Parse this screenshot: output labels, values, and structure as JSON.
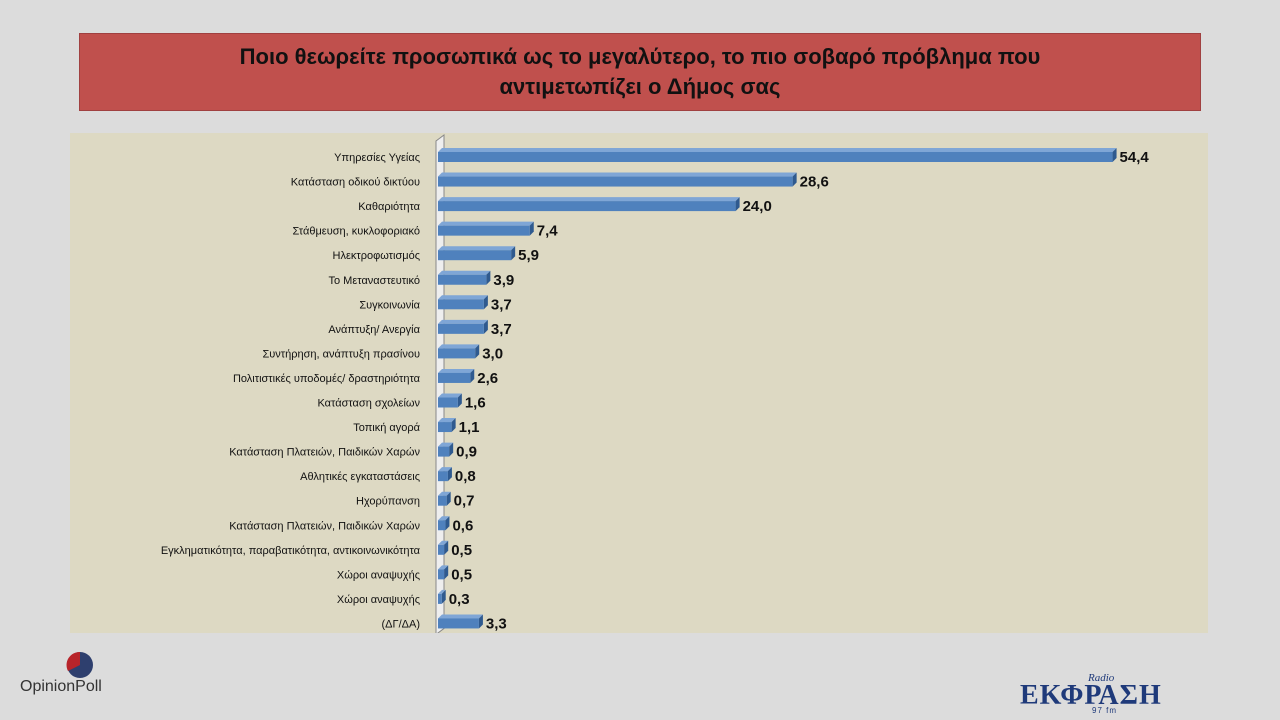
{
  "title_lines": [
    "Ποιο θεωρείτε προσωπικά ως το μεγαλύτερο, το πιο σοβαρό πρόβλημα που",
    "αντιμετωπίζει ο Δήμος σας"
  ],
  "chart_data": {
    "type": "bar",
    "orientation": "horizontal",
    "categories": [
      "Υπηρεσίες Υγείας",
      "Κατάσταση οδικού δικτύου",
      "Καθαριότητα",
      "Στάθμευση, κυκλοφοριακό",
      "Ηλεκτροφωτισμός",
      "Το Μεταναστευτικό",
      "Συγκοινωνία",
      "Ανάπτυξη/ Ανεργία",
      "Συντήρηση, ανάπτυξη πρασίνου",
      "Πολιτιστικές υποδομές/ δραστηριότητα",
      "Κατάσταση σχολείων",
      "Τοπική αγορά",
      "Κατάσταση Πλατειών, Παιδικών Χαρών",
      "Αθλητικές εγκαταστάσεις",
      "Ηχορύπανση",
      "Κατάσταση Πλατειών, Παιδικών Χαρών",
      "Εγκληματικότητα, παραβατικότητα, αντικοινωνικότητα",
      "Χώροι αναψυχής",
      "Χώροι αναψυχής",
      "(ΔΓ/ΔΑ)"
    ],
    "values": [
      54.4,
      28.6,
      24.0,
      7.4,
      5.9,
      3.9,
      3.7,
      3.7,
      3.0,
      2.6,
      1.6,
      1.1,
      0.9,
      0.8,
      0.7,
      0.6,
      0.5,
      0.5,
      0.3,
      3.3
    ],
    "value_labels": [
      "54,4",
      "28,6",
      "24,0",
      "7,4",
      "5,9",
      "3,9",
      "3,7",
      "3,7",
      "3,0",
      "2,6",
      "1,6",
      "1,1",
      "0,9",
      "0,8",
      "0,7",
      "0,6",
      "0,5",
      "0,5",
      "0,3",
      "3,3"
    ],
    "xlim": [
      0,
      55
    ],
    "grid": false,
    "legend": "none"
  },
  "colors": {
    "title_bg": "#c0504d",
    "plot_bg": "#ddd9c3",
    "bar_front": "#4f81bd",
    "bar_top": "#7fa6d6",
    "bar_side": "#2f5a8f"
  },
  "logos": {
    "opinion_poll": {
      "part1": "Opinion",
      "part2": "Poll"
    },
    "radio": {
      "small": "Radio",
      "main": "ΕΚΦΡΑΣΗ",
      "freq": "97 fm"
    }
  }
}
